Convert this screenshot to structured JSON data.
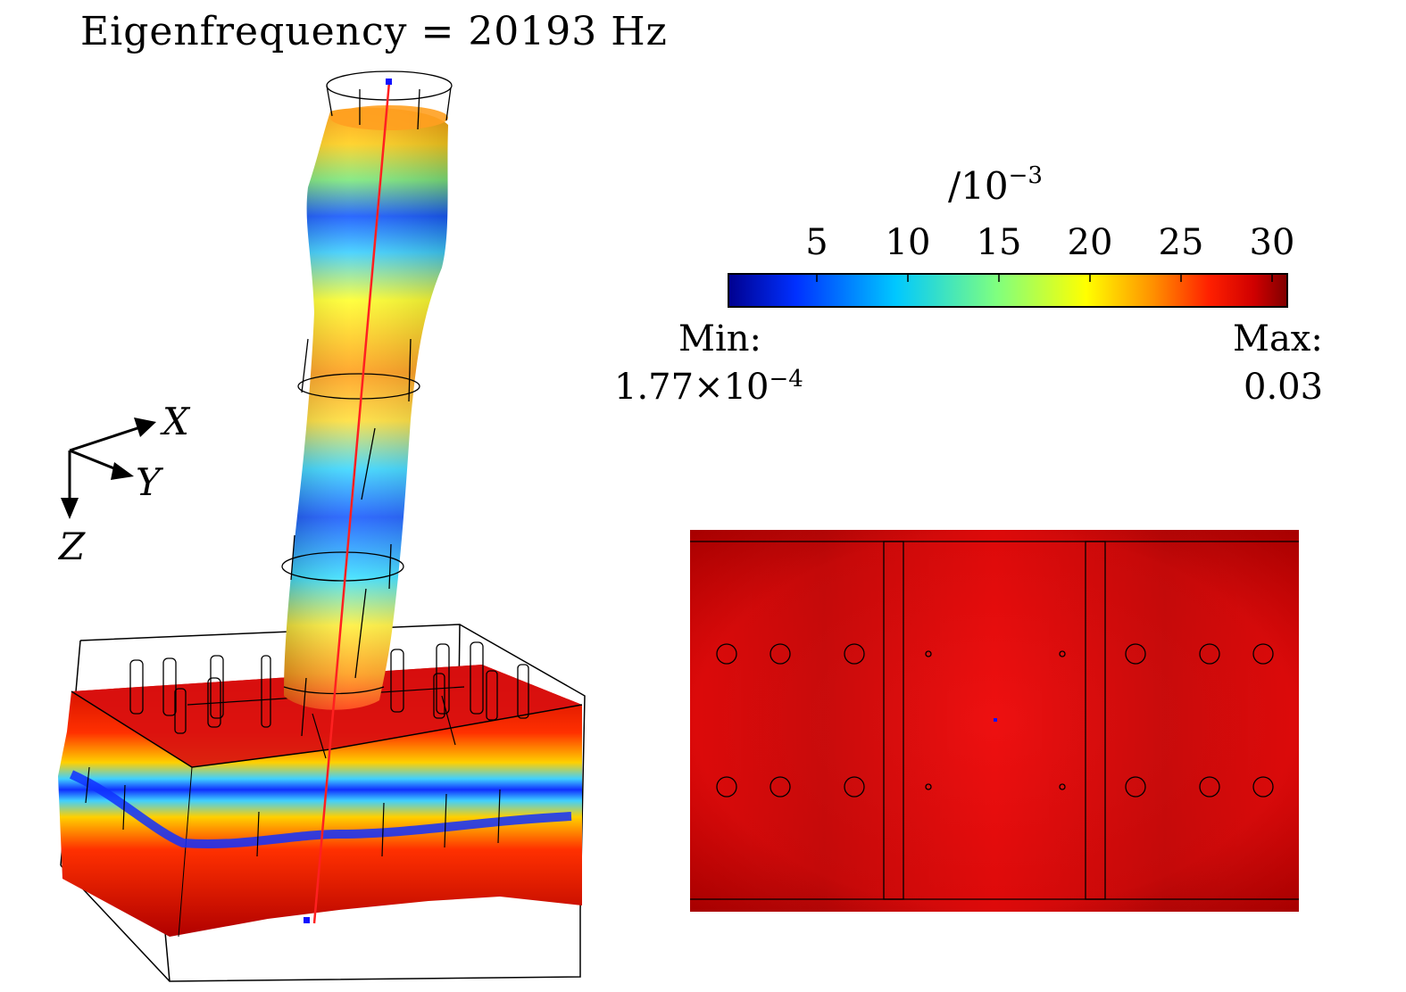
{
  "title": "Eigenfrequency = 20193 Hz",
  "colorbar": {
    "unit_prefix": "/10",
    "unit_exp": "−3",
    "ticks": [
      "5",
      "10",
      "15",
      "20",
      "25",
      "30"
    ],
    "min_label": "Min:",
    "min_mantissa": "1.77×10",
    "min_exp": "−4",
    "max_label": "Max:",
    "max_value": "0.03",
    "colormap": [
      "#00008f",
      "#0030ff",
      "#00c8ff",
      "#7fff7f",
      "#ffff00",
      "#ff9000",
      "#ff2000",
      "#d00000",
      "#800000"
    ]
  },
  "axes": {
    "x": "X",
    "y": "Y",
    "z": "Z"
  },
  "views": {
    "perspective": "3d-deformed-mode-shape",
    "top": "top-view"
  }
}
